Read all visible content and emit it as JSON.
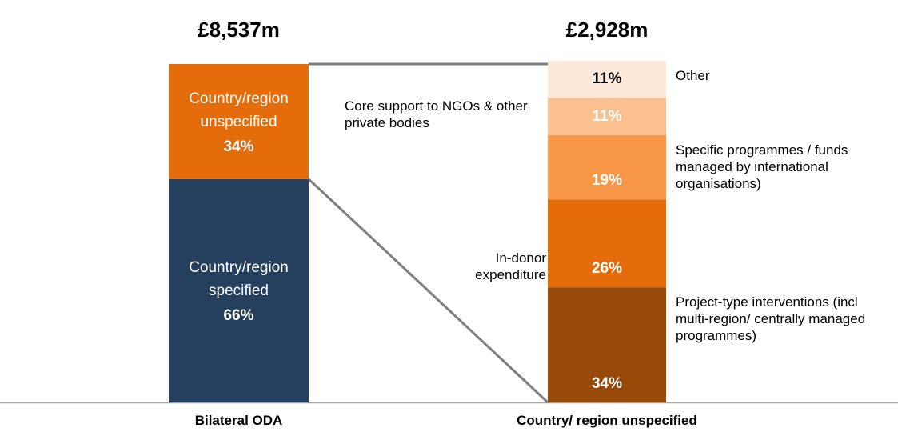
{
  "chart_data": {
    "type": "stacked_bar",
    "ylim": [
      0,
      100
    ],
    "bars": [
      {
        "category": "Bilateral ODA",
        "total": 8537,
        "total_label": "£8,537m",
        "names": [
          "Country/region specified",
          "Country/region unspecified"
        ],
        "values": [
          66,
          34
        ],
        "value_labels": [
          "66%",
          "34%"
        ],
        "colors": [
          "#253f5e",
          "#e46c0a"
        ],
        "label_positions": [
          "inside",
          "inside"
        ]
      },
      {
        "category": "Country/ region unspecified",
        "total": 2928,
        "total_label": "£2,928m",
        "names": [
          "Project-type interventions (incl multi-region/ centrally managed programmes)",
          "In-donor expenditure",
          "Specific programmes / funds managed by international organisations)",
          "Core support to NGOs & other private bodies",
          "Other"
        ],
        "values": [
          34,
          26,
          19,
          11,
          11
        ],
        "value_labels": [
          "34%",
          "26%",
          "19%",
          "11%",
          "11%"
        ],
        "colors": [
          "#984807",
          "#e46c0a",
          "#f79646",
          "#fac090",
          "#fde9d9"
        ],
        "label_positions": [
          "right",
          "left",
          "right",
          "left",
          "right"
        ]
      }
    ]
  }
}
